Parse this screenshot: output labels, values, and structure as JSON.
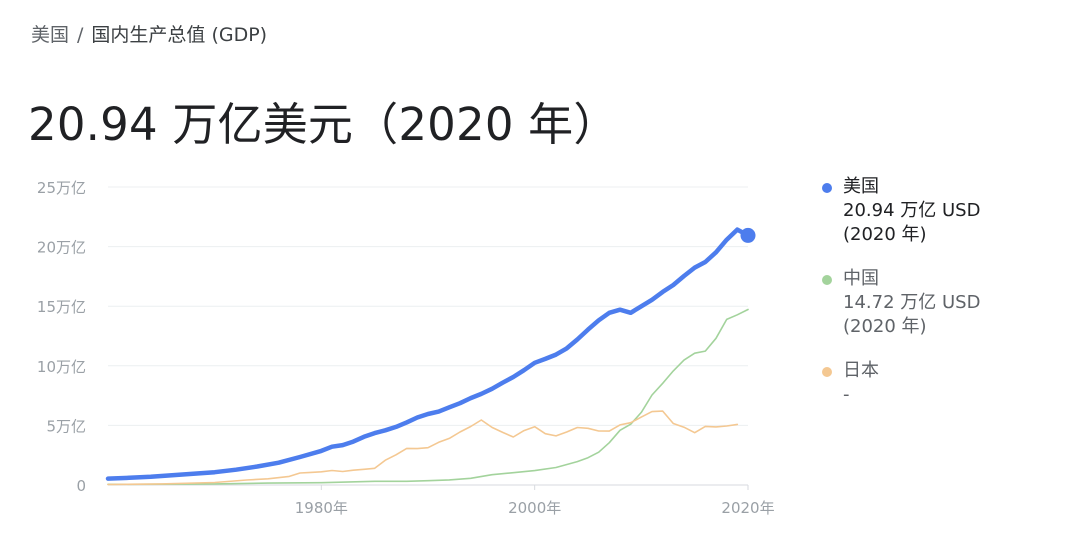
{
  "breadcrumb": {
    "country": "美国",
    "separator": "/",
    "indicator": "国内生产总值 (GDP)"
  },
  "headline": {
    "value": "20.94 万亿美元（2020 年）"
  },
  "colors": {
    "us": "#4d7ded",
    "cn": "#a3d39c",
    "jp": "#f4c892",
    "grid": "#eceff1",
    "tick": "#9aa0a6"
  },
  "legend": [
    {
      "name": "美国",
      "value": "20.94 万亿 USD",
      "year": "(2020 年)",
      "color": "#4d7ded"
    },
    {
      "name": "中国",
      "value": "14.72 万亿 USD",
      "year": "(2020 年)",
      "color": "#a3d39c"
    },
    {
      "name": "日本",
      "value": "-",
      "year": "",
      "color": "#f4c892"
    }
  ],
  "chart_data": {
    "type": "line",
    "title": "",
    "xlabel": "",
    "ylabel": "",
    "xlim": [
      1960,
      2020
    ],
    "ylim": [
      0,
      25
    ],
    "grid": true,
    "legend_position": "right",
    "y_ticks": [
      {
        "value": 0,
        "label": "0"
      },
      {
        "value": 5,
        "label": "5万亿"
      },
      {
        "value": 10,
        "label": "10万亿"
      },
      {
        "value": 15,
        "label": "15万亿"
      },
      {
        "value": 20,
        "label": "20万亿"
      },
      {
        "value": 25,
        "label": "25万亿"
      }
    ],
    "x_ticks": [
      {
        "value": 1980,
        "label": "1980年"
      },
      {
        "value": 2000,
        "label": "2000年"
      },
      {
        "value": 2020,
        "label": "2020年"
      }
    ],
    "series": [
      {
        "name": "美国",
        "color": "#4d7ded",
        "highlight_last": true,
        "points": [
          [
            1960,
            0.54
          ],
          [
            1962,
            0.6
          ],
          [
            1964,
            0.69
          ],
          [
            1966,
            0.82
          ],
          [
            1968,
            0.94
          ],
          [
            1970,
            1.07
          ],
          [
            1972,
            1.28
          ],
          [
            1974,
            1.55
          ],
          [
            1976,
            1.87
          ],
          [
            1978,
            2.35
          ],
          [
            1980,
            2.86
          ],
          [
            1981,
            3.21
          ],
          [
            1982,
            3.35
          ],
          [
            1983,
            3.64
          ],
          [
            1984,
            4.04
          ],
          [
            1985,
            4.35
          ],
          [
            1986,
            4.59
          ],
          [
            1987,
            4.87
          ],
          [
            1988,
            5.25
          ],
          [
            1989,
            5.66
          ],
          [
            1990,
            5.96
          ],
          [
            1991,
            6.16
          ],
          [
            1992,
            6.52
          ],
          [
            1993,
            6.86
          ],
          [
            1994,
            7.29
          ],
          [
            1995,
            7.64
          ],
          [
            1996,
            8.07
          ],
          [
            1997,
            8.58
          ],
          [
            1998,
            9.06
          ],
          [
            1999,
            9.63
          ],
          [
            2000,
            10.25
          ],
          [
            2001,
            10.58
          ],
          [
            2002,
            10.94
          ],
          [
            2003,
            11.46
          ],
          [
            2004,
            12.21
          ],
          [
            2005,
            13.04
          ],
          [
            2006,
            13.82
          ],
          [
            2007,
            14.45
          ],
          [
            2008,
            14.71
          ],
          [
            2009,
            14.45
          ],
          [
            2010,
            14.99
          ],
          [
            2011,
            15.54
          ],
          [
            2012,
            16.2
          ],
          [
            2013,
            16.78
          ],
          [
            2014,
            17.53
          ],
          [
            2015,
            18.24
          ],
          [
            2016,
            18.71
          ],
          [
            2017,
            19.52
          ],
          [
            2018,
            20.58
          ],
          [
            2019,
            21.43
          ],
          [
            2020,
            20.94
          ]
        ]
      },
      {
        "name": "中国",
        "color": "#a3d39c",
        "highlight_last": false,
        "points": [
          [
            1960,
            0.06
          ],
          [
            1965,
            0.07
          ],
          [
            1970,
            0.09
          ],
          [
            1975,
            0.16
          ],
          [
            1980,
            0.19
          ],
          [
            1985,
            0.31
          ],
          [
            1988,
            0.31
          ],
          [
            1990,
            0.36
          ],
          [
            1992,
            0.43
          ],
          [
            1994,
            0.56
          ],
          [
            1996,
            0.86
          ],
          [
            1998,
            1.03
          ],
          [
            2000,
            1.21
          ],
          [
            2002,
            1.47
          ],
          [
            2004,
            1.96
          ],
          [
            2005,
            2.29
          ],
          [
            2006,
            2.75
          ],
          [
            2007,
            3.55
          ],
          [
            2008,
            4.59
          ],
          [
            2009,
            5.1
          ],
          [
            2010,
            6.09
          ],
          [
            2011,
            7.55
          ],
          [
            2012,
            8.53
          ],
          [
            2013,
            9.57
          ],
          [
            2014,
            10.48
          ],
          [
            2015,
            11.06
          ],
          [
            2016,
            11.23
          ],
          [
            2017,
            12.31
          ],
          [
            2018,
            13.89
          ],
          [
            2019,
            14.28
          ],
          [
            2020,
            14.72
          ]
        ]
      },
      {
        "name": "日本",
        "color": "#f4c892",
        "highlight_last": false,
        "points": [
          [
            1960,
            0.04
          ],
          [
            1965,
            0.09
          ],
          [
            1970,
            0.21
          ],
          [
            1973,
            0.42
          ],
          [
            1975,
            0.52
          ],
          [
            1977,
            0.72
          ],
          [
            1978,
            1.01
          ],
          [
            1979,
            1.06
          ],
          [
            1980,
            1.11
          ],
          [
            1981,
            1.22
          ],
          [
            1982,
            1.13
          ],
          [
            1983,
            1.24
          ],
          [
            1984,
            1.32
          ],
          [
            1985,
            1.4
          ],
          [
            1986,
            2.08
          ],
          [
            1987,
            2.53
          ],
          [
            1988,
            3.07
          ],
          [
            1989,
            3.05
          ],
          [
            1990,
            3.13
          ],
          [
            1991,
            3.58
          ],
          [
            1992,
            3.91
          ],
          [
            1993,
            4.45
          ],
          [
            1994,
            4.91
          ],
          [
            1995,
            5.45
          ],
          [
            1996,
            4.83
          ],
          [
            1997,
            4.41
          ],
          [
            1998,
            4.03
          ],
          [
            1999,
            4.56
          ],
          [
            2000,
            4.89
          ],
          [
            2001,
            4.3
          ],
          [
            2002,
            4.12
          ],
          [
            2003,
            4.45
          ],
          [
            2004,
            4.82
          ],
          [
            2005,
            4.76
          ],
          [
            2006,
            4.53
          ],
          [
            2007,
            4.52
          ],
          [
            2008,
            5.04
          ],
          [
            2009,
            5.23
          ],
          [
            2010,
            5.7
          ],
          [
            2011,
            6.16
          ],
          [
            2012,
            6.2
          ],
          [
            2013,
            5.16
          ],
          [
            2014,
            4.85
          ],
          [
            2015,
            4.39
          ],
          [
            2016,
            4.92
          ],
          [
            2017,
            4.87
          ],
          [
            2018,
            4.95
          ],
          [
            2019,
            5.08
          ]
        ]
      }
    ]
  }
}
